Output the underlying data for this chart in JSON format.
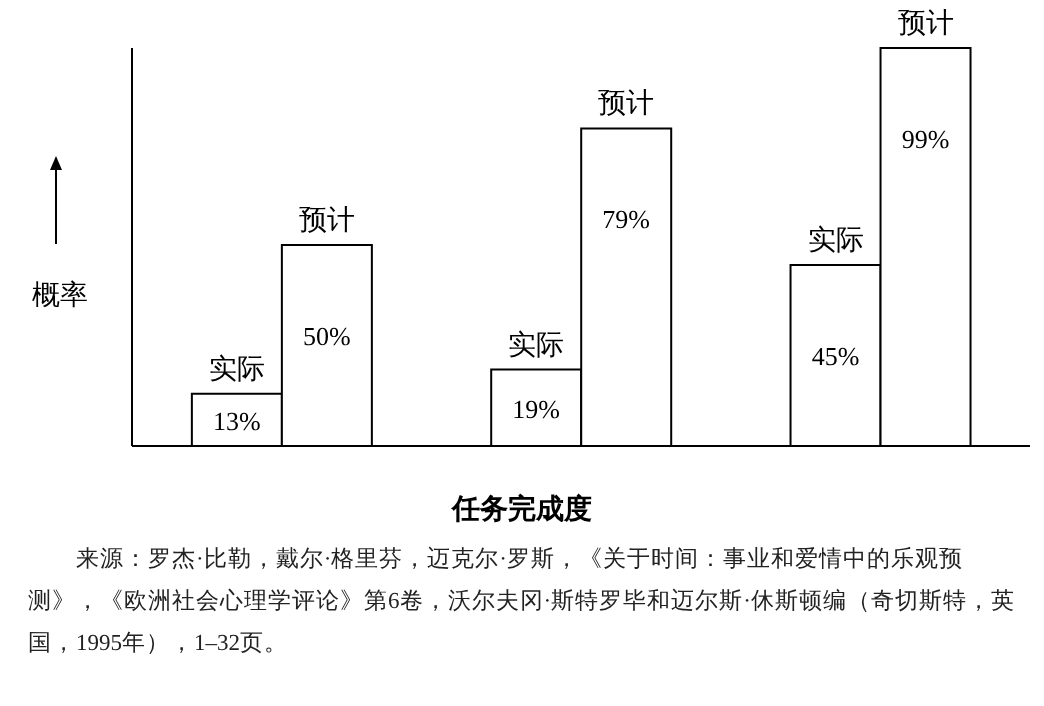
{
  "chart_data": {
    "type": "bar",
    "xlabel": "任务完成度",
    "ylabel": "概率",
    "categories": [
      null,
      null,
      null
    ],
    "series": [
      {
        "name": "实际",
        "color": "#ffffff",
        "values": [
          13,
          19,
          45
        ],
        "value_labels": [
          "13%",
          "19%",
          "45%"
        ]
      },
      {
        "name": "预计",
        "color": "#ffffff",
        "values": [
          50,
          79,
          99
        ],
        "value_labels": [
          "50%",
          "79%",
          "99%"
        ]
      }
    ],
    "tick_labels": false,
    "grid": false,
    "legend": false,
    "annotations": [
      "来源：罗杰·比勒，戴尔·格里芬，迈克尔·罗斯，《关于时间：事业和爱情中的乐观预测》，《欧洲社会心理学评论》第6卷，沃尔夫冈·斯特罗毕和迈尔斯·休斯顿编（奇切斯特，英国，1995年），1–32页。"
    ]
  }
}
